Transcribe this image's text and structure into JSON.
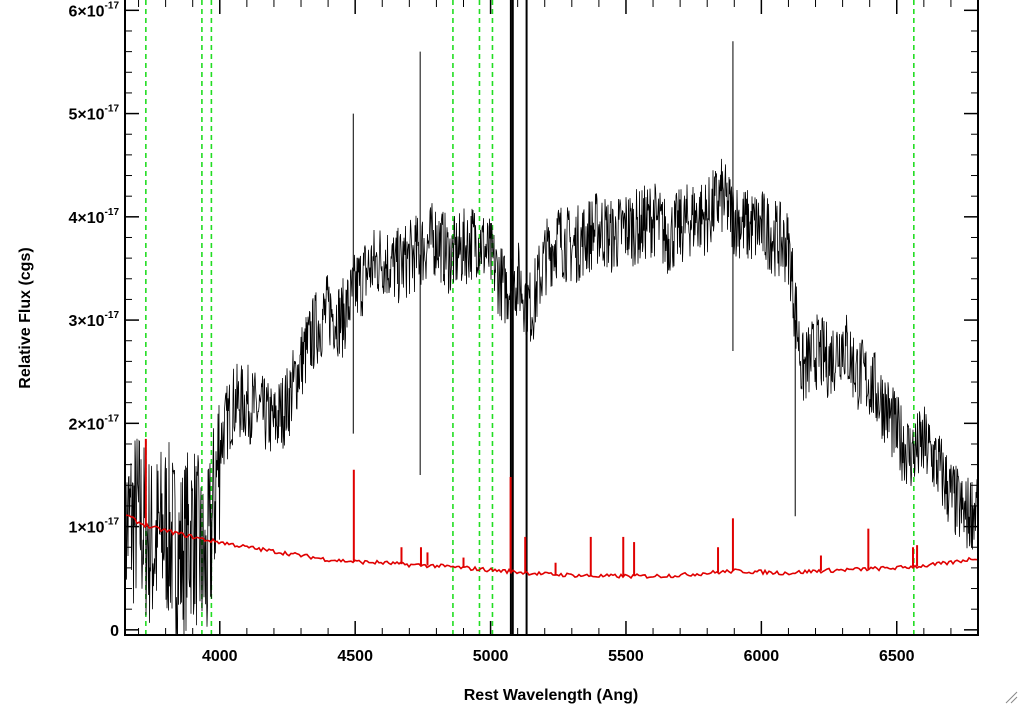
{
  "chart_data": {
    "type": "line",
    "xlabel": "Rest Wavelength (Ang)",
    "ylabel": "Relative Flux (cgs)",
    "xlim": [
      3650,
      6800
    ],
    "ylim": [
      -5e-19,
      6.1e-17
    ],
    "x_ticks": [
      4000,
      4500,
      5000,
      5500,
      6000,
      6500
    ],
    "x_tick_labels": [
      "4000",
      "4500",
      "5000",
      "5500",
      "6000",
      "6500"
    ],
    "y_ticks": [
      0,
      1e-17,
      2e-17,
      3e-17,
      4e-17,
      5e-17,
      6e-17
    ],
    "y_tick_labels": [
      {
        "mantissa": "0",
        "exponent": ""
      },
      {
        "mantissa": "1×10",
        "exponent": "-17"
      },
      {
        "mantissa": "2×10",
        "exponent": "-17"
      },
      {
        "mantissa": "3×10",
        "exponent": "-17"
      },
      {
        "mantissa": "4×10",
        "exponent": "-17"
      },
      {
        "mantissa": "5×10",
        "exponent": "-17"
      },
      {
        "mantissa": "6×10",
        "exponent": "-17"
      }
    ],
    "grid": false,
    "series": [
      {
        "color": "#000000",
        "x": [
          3650,
          3700,
          3750,
          3800,
          3850,
          3900,
          3950,
          4000,
          4050,
          4100,
          4150,
          4200,
          4250,
          4300,
          4350,
          4400,
          4450,
          4500,
          4550,
          4600,
          4650,
          4700,
          4750,
          4800,
          4850,
          4900,
          4950,
          5000,
          5050,
          5100,
          5150,
          5200,
          5250,
          5300,
          5350,
          5400,
          5450,
          5500,
          5550,
          5600,
          5650,
          5700,
          5750,
          5800,
          5850,
          5900,
          5950,
          6000,
          6050,
          6100,
          6150,
          6200,
          6250,
          6300,
          6350,
          6400,
          6450,
          6500,
          6550,
          6600,
          6650,
          6700,
          6750,
          6800
        ],
        "y": [
          1e-17,
          1.1e-17,
          8e-18,
          1e-17,
          7e-18,
          1e-17,
          5e-18,
          1.8e-17,
          2.2e-17,
          2.2e-17,
          2.1e-17,
          2e-17,
          2.2e-17,
          2.6e-17,
          2.9e-17,
          3.1e-17,
          3e-17,
          3.3e-17,
          3.5e-17,
          3.6e-17,
          3.5e-17,
          3.6e-17,
          3.7e-17,
          3.8e-17,
          3.6e-17,
          3.7e-17,
          3.8e-17,
          3.6e-17,
          3.3e-17,
          3.4e-17,
          3.1e-17,
          3.6e-17,
          3.8e-17,
          3.7e-17,
          3.8e-17,
          3.9e-17,
          3.8e-17,
          3.9e-17,
          3.9e-17,
          4e-17,
          3.8e-17,
          3.9e-17,
          4e-17,
          4e-17,
          4.2e-17,
          4e-17,
          3.9e-17,
          3.9e-17,
          3.8e-17,
          3.7e-17,
          2.5e-17,
          2.7e-17,
          2.6e-17,
          2.8e-17,
          2.5e-17,
          2.4e-17,
          2.2e-17,
          1.9e-17,
          1.7e-17,
          1.8e-17,
          1.6e-17,
          1.3e-17,
          1.1e-17,
          1.2e-17
        ]
      },
      {
        "color": "#e00000",
        "x": [
          3650,
          3700,
          3750,
          3800,
          3850,
          3900,
          3950,
          4000,
          4100,
          4200,
          4300,
          4400,
          4500,
          4600,
          4700,
          4800,
          4900,
          5000,
          5100,
          5200,
          5300,
          5400,
          5500,
          5600,
          5700,
          5800,
          5900,
          6000,
          6100,
          6200,
          6300,
          6400,
          6500,
          6600,
          6700,
          6800
        ],
        "y": [
          1.12e-17,
          1.04e-17,
          9.9e-18,
          9.6e-18,
          9.3e-18,
          9e-18,
          8.7e-18,
          8.5e-18,
          8e-18,
          7.6e-18,
          7.2e-18,
          6.8e-18,
          6.6e-18,
          6.5e-18,
          6.3e-18,
          6.2e-18,
          6e-18,
          5.8e-18,
          5.6e-18,
          5.4e-18,
          5.3e-18,
          5.2e-18,
          5.2e-18,
          5.2e-18,
          5.3e-18,
          5.5e-18,
          5.7e-18,
          5.6e-18,
          5.5e-18,
          5.7e-18,
          5.8e-18,
          5.9e-18,
          6e-18,
          6.2e-18,
          6.5e-18,
          7e-18
        ]
      }
    ],
    "red_emission_lines": [
      {
        "x": 3727,
        "peak": 1.85e-17
      },
      {
        "x": 4495,
        "peak": 1.55e-17
      },
      {
        "x": 4671,
        "peak": 8e-18
      },
      {
        "x": 4743,
        "peak": 8e-18
      },
      {
        "x": 4767,
        "peak": 7.5e-18
      },
      {
        "x": 4900,
        "peak": 7e-18
      },
      {
        "x": 5074,
        "peak": 1.48e-17
      },
      {
        "x": 5128,
        "peak": 9e-18
      },
      {
        "x": 5240,
        "peak": 6.5e-18
      },
      {
        "x": 5370,
        "peak": 9e-18
      },
      {
        "x": 5490,
        "peak": 9e-18
      },
      {
        "x": 5530,
        "peak": 8.5e-18
      },
      {
        "x": 5840,
        "peak": 8e-18
      },
      {
        "x": 5895,
        "peak": 1.08e-17
      },
      {
        "x": 6220,
        "peak": 7.2e-18
      },
      {
        "x": 6395,
        "peak": 9.8e-18
      },
      {
        "x": 6560,
        "peak": 8e-18
      },
      {
        "x": 6575,
        "peak": 8.2e-18
      }
    ],
    "black_spikes": [
      {
        "x": 4493,
        "low": 1.9e-17,
        "high": 5e-17
      },
      {
        "x": 4740,
        "low": 1.5e-17,
        "high": 5.6e-17
      },
      {
        "x": 5075,
        "low": -1e-18,
        "high": 6.2e-17
      },
      {
        "x": 5082,
        "low": -1e-18,
        "high": 6.2e-17
      },
      {
        "x": 5133,
        "low": -1e-18,
        "high": 6.2e-17
      },
      {
        "x": 5895,
        "low": 2.7e-17,
        "high": 5.7e-17
      },
      {
        "x": 6125,
        "low": 1.1e-17,
        "high": 3e-17
      }
    ],
    "reference_lines": {
      "color": "#22dd22",
      "style": "dashed",
      "x": [
        3727,
        3934,
        3969,
        4861,
        4959,
        5007,
        6563
      ]
    }
  }
}
